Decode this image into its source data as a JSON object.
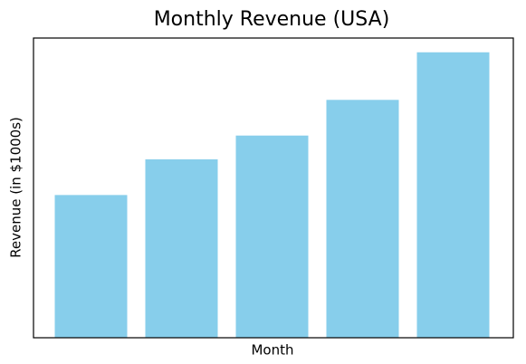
{
  "chart_data": {
    "type": "bar",
    "title": "Monthly Revenue (USA)",
    "x_label": "Month",
    "y_label": "Revenue (in $1000s)",
    "categories": [
      null,
      null,
      null,
      null,
      null
    ],
    "values": [
      120,
      150,
      170,
      200,
      240
    ],
    "color": "#87ceeb",
    "ylim": [
      0,
      252
    ]
  }
}
